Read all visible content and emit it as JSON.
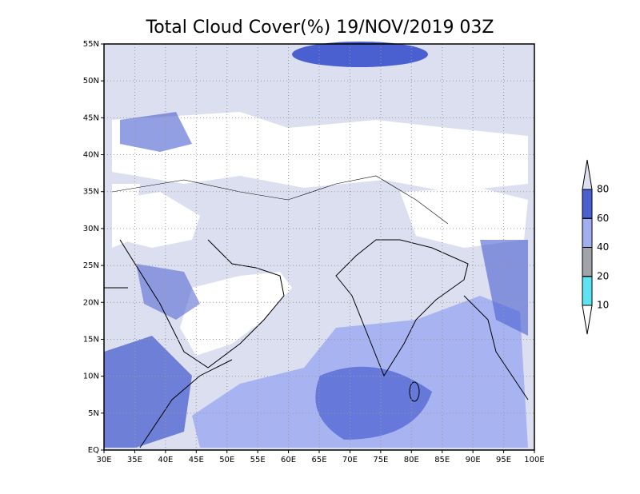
{
  "chart_data": {
    "type": "map",
    "title": "Total Cloud Cover(%) 19/NOV/2019 03Z",
    "xlim": [
      30,
      100
    ],
    "ylim": [
      0,
      55
    ],
    "xticks": [
      {
        "value": 30,
        "label": "30E"
      },
      {
        "value": 35,
        "label": "35E"
      },
      {
        "value": 40,
        "label": "40E"
      },
      {
        "value": 45,
        "label": "45E"
      },
      {
        "value": 50,
        "label": "50E"
      },
      {
        "value": 55,
        "label": "55E"
      },
      {
        "value": 60,
        "label": "60E"
      },
      {
        "value": 65,
        "label": "65E"
      },
      {
        "value": 70,
        "label": "70E"
      },
      {
        "value": 75,
        "label": "75E"
      },
      {
        "value": 80,
        "label": "80E"
      },
      {
        "value": 85,
        "label": "85E"
      },
      {
        "value": 90,
        "label": "90E"
      },
      {
        "value": 95,
        "label": "95E"
      },
      {
        "value": 100,
        "label": "100E"
      }
    ],
    "yticks": [
      {
        "value": 0,
        "label": "EQ"
      },
      {
        "value": 5,
        "label": "5N"
      },
      {
        "value": 10,
        "label": "10N"
      },
      {
        "value": 15,
        "label": "15N"
      },
      {
        "value": 20,
        "label": "20N"
      },
      {
        "value": 25,
        "label": "25N"
      },
      {
        "value": 30,
        "label": "30N"
      },
      {
        "value": 35,
        "label": "35N"
      },
      {
        "value": 40,
        "label": "40N"
      },
      {
        "value": 45,
        "label": "45N"
      },
      {
        "value": 50,
        "label": "50N"
      },
      {
        "value": 55,
        "label": "55N"
      }
    ],
    "grid": true,
    "colorbar": {
      "levels": [
        10,
        20,
        40,
        60,
        80
      ],
      "colors": [
        "#ffffff",
        "#5ee3f2",
        "#a0a4a8",
        "#a2aef2",
        "#4a5fd0",
        "#dcdff0"
      ]
    }
  }
}
